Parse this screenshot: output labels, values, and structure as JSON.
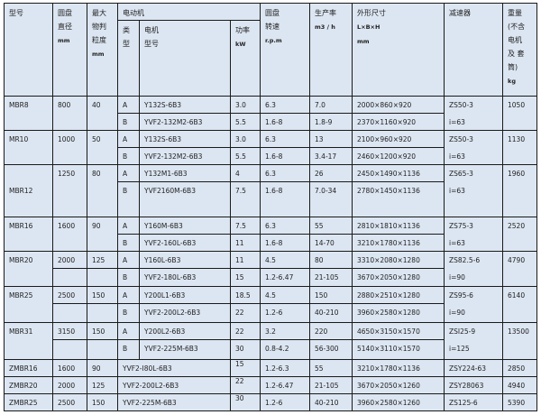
{
  "header": {
    "model": "型号",
    "diameter": [
      "圆盘",
      "直径",
      "mm"
    ],
    "feed": [
      "最大",
      "物判",
      "粒度",
      "mm"
    ],
    "motor": "电动机",
    "type": [
      "类",
      "型"
    ],
    "motor_model": [
      "电机",
      "型号"
    ],
    "power": [
      "功率",
      "kW"
    ],
    "speed": [
      "圆盘",
      "转速",
      "r.p.m"
    ],
    "capacity": [
      "生产率",
      "m3 / h"
    ],
    "dims": [
      "外形尺寸",
      "L×B×H",
      "mm"
    ],
    "reducer": "减速器",
    "weight": [
      "重量",
      "(不含",
      "电机",
      "及 套",
      "筒)",
      "kg"
    ]
  },
  "groups": [
    {
      "model": "MBR8",
      "diameter": "800",
      "feed": "40",
      "reducer": "ZS50-3",
      "ratio": "i=63",
      "weight": "1050",
      "rows": [
        {
          "type": "A",
          "motor": "Y132S-6B3",
          "power": "3.0",
          "speed": "6.3",
          "capacity": "7.0",
          "dims": "2000×860×920"
        },
        {
          "type": "B",
          "motor": "YVF2-132M2-6B3",
          "power": "5.5",
          "speed": "1.6-8",
          "capacity": "1.8-9",
          "dims": "2370×1160×920"
        }
      ]
    },
    {
      "model": "MR10",
      "diameter": "1000",
      "feed": "50",
      "reducer": "ZS50-3",
      "ratio": "i=63",
      "weight": "1130",
      "rows": [
        {
          "type": "A",
          "motor": "Y132S-6B3",
          "power": "3.0",
          "speed": "6.3",
          "capacity": "13",
          "dims": "2100×960×920"
        },
        {
          "type": "B",
          "motor": "YVF2-132M2-6B3",
          "power": "5.5",
          "speed": "1.6-8",
          "capacity": "3.4-17",
          "dims": "2460×1200×920"
        }
      ]
    },
    {
      "model": "MBR12",
      "diameter": "1250",
      "feed": "80",
      "reducer": "ZS65-3",
      "ratio": "i=63",
      "weight": "1960",
      "rows": [
        {
          "type": "A",
          "motor": "Y132M1-6B3",
          "power": "4",
          "speed": "6.3",
          "capacity": "26",
          "dims": "2450×1490×1136"
        },
        {
          "type": "B",
          "motor": "YVF2160M-6B3",
          "power": "7.5",
          "speed": "1.6-8",
          "capacity": "7.0-34",
          "dims": "2780×1450×1136"
        }
      ]
    },
    {
      "model": "MBR16",
      "diameter": "1600",
      "feed": "90",
      "reducer": "ZS75-3",
      "ratio": "i=63",
      "weight": "2520",
      "rows": [
        {
          "type": "A",
          "motor": "Y160M-6B3",
          "power": "7.5",
          "speed": "6.3",
          "capacity": "55",
          "dims": "2810×1810×1136"
        },
        {
          "type": "B",
          "motor": "YVF2-160L-6B3",
          "power": "11",
          "speed": "1.6-8",
          "capacity": "14-70",
          "dims": "3210×1780×1136"
        }
      ]
    },
    {
      "model": "MBR20",
      "diameter": "2000",
      "feed": "125",
      "reducer": "ZS82.5-6",
      "ratio": "i=90",
      "weight": "4790",
      "rows": [
        {
          "type": "A",
          "motor": "Y160L-6B3",
          "power": "11",
          "speed": "4.5",
          "capacity": "80",
          "dims": "3310×2080×1280"
        },
        {
          "type": "B",
          "motor": "YVF2-180L-6B3",
          "power": "15",
          "speed": "1.2-6.47",
          "capacity": "21-105",
          "dims": "3670×2050×1280"
        }
      ]
    },
    {
      "model": "MBR25",
      "diameter": "2500",
      "feed": "150",
      "reducer": "ZS95-6",
      "ratio": "i=90",
      "weight": "6140",
      "rows": [
        {
          "type": "A",
          "motor": "Y200L1-6B3",
          "power": "18.5",
          "speed": "4.5",
          "capacity": "150",
          "dims": "2880×2510×1280"
        },
        {
          "type": "B",
          "motor": "YVF2-200L2-6B3",
          "power": "22",
          "speed": "1.2-6",
          "capacity": "40-210",
          "dims": "3960×2580×1280"
        }
      ]
    },
    {
      "model": "MBR31",
      "diameter": "3150",
      "feed": "150",
      "reducer": "ZSI25-9",
      "ratio": "i=125",
      "weight": "13500",
      "rows": [
        {
          "type": "A",
          "motor": "Y200L2-6B3",
          "power": "22",
          "speed": "3.2",
          "capacity": "220",
          "dims": "4650×3150×1570"
        },
        {
          "type": "B",
          "motor": "YVF2-225M-6B3",
          "power": "30",
          "speed": "0.8-4.2",
          "capacity": "56-300",
          "dims": "5140×3110×1570"
        }
      ]
    }
  ],
  "single_rows": [
    {
      "model": "ZMBR16",
      "diameter": "1600",
      "feed": "90",
      "motor": "YVF2-I80L-6B3",
      "power": "15",
      "speed": "1.2-6.3",
      "capacity": "55",
      "dims": "3210×1780×1136",
      "reducer": "ZSY224-63",
      "weight": "2850"
    },
    {
      "model": "ZMBR20",
      "diameter": "2000",
      "feed": "125",
      "motor": "YVF2-200L2-6B3",
      "power": "22",
      "speed": "1.2-6.47",
      "capacity": "21-105",
      "dims": "3670×2050×1260",
      "reducer": "ZSY28063",
      "weight": "4940"
    },
    {
      "model": "ZMBR25",
      "diameter": "2500",
      "feed": "150",
      "motor": "YVF2-225M-6B3",
      "power": "30",
      "speed": "1.2-6",
      "capacity": "40-210",
      "dims": "3960×2580×1260",
      "reducer": "ZS125-6",
      "weight": "5390"
    }
  ]
}
